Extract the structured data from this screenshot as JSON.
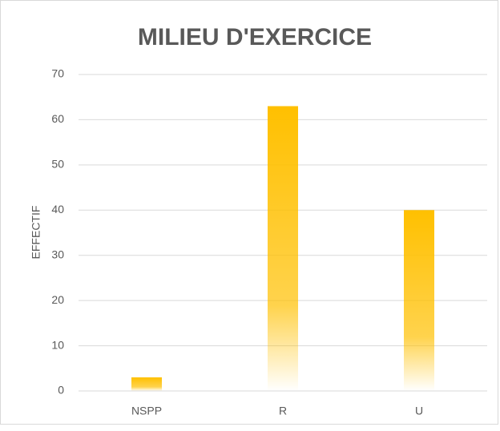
{
  "chart_data": {
    "type": "bar",
    "title": "MILIEU D'EXERCICE",
    "y_label": "EFFECTIF",
    "categories": [
      "NSPP",
      "R",
      "U"
    ],
    "values": [
      3,
      63,
      40
    ],
    "color": "#ffc000",
    "ylim": [
      0,
      70
    ],
    "yticks": [
      0,
      10,
      20,
      30,
      40,
      50,
      60,
      70
    ],
    "grid": true
  }
}
